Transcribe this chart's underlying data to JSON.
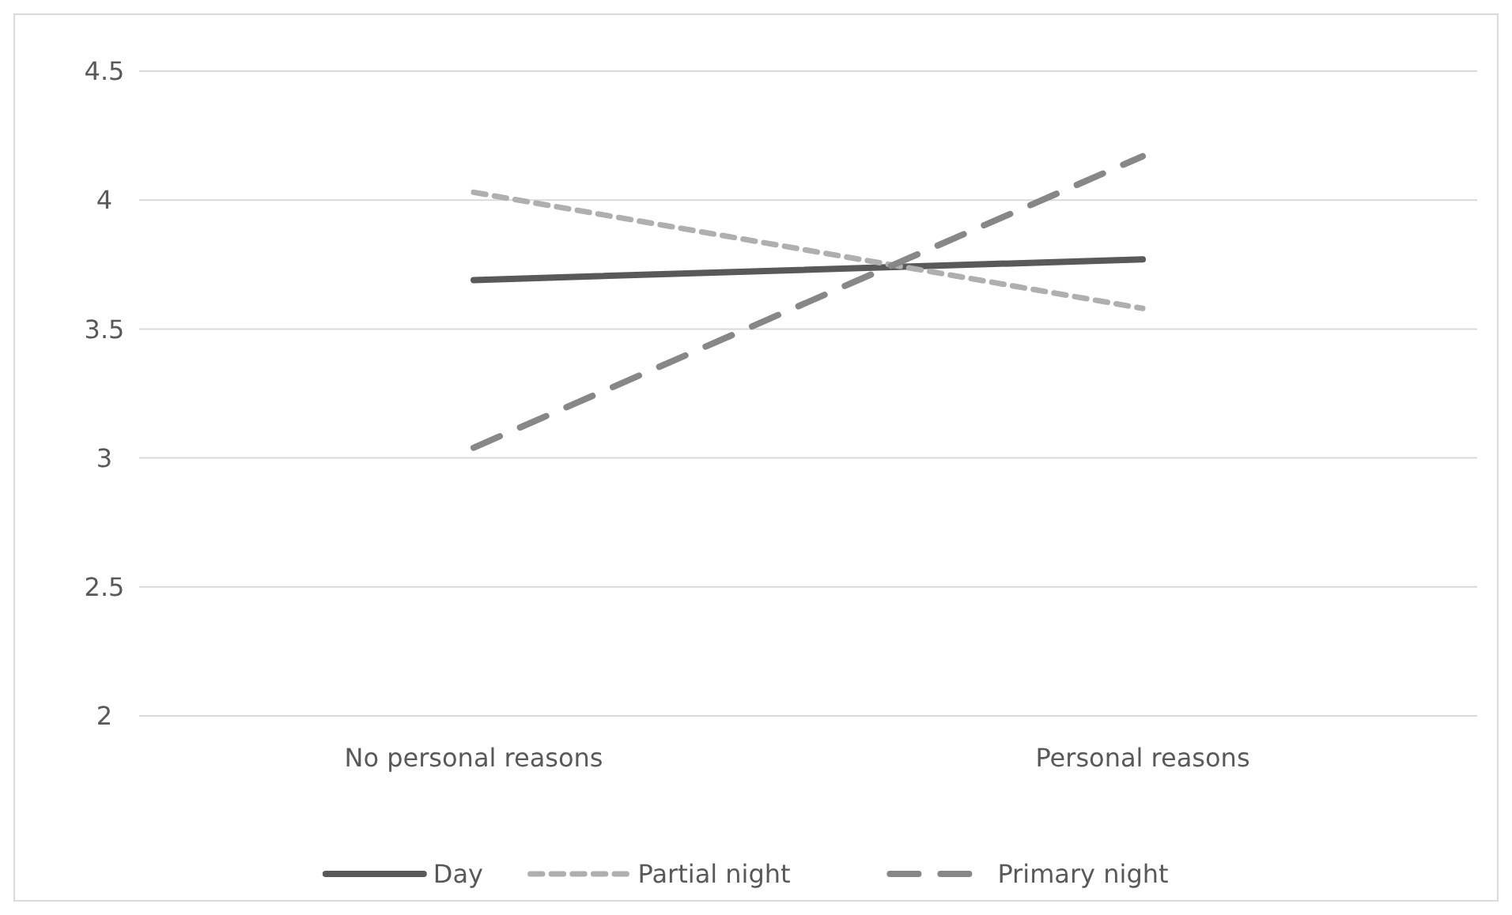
{
  "chart_data": {
    "type": "line",
    "categories": [
      "No personal reasons",
      "Personal reasons"
    ],
    "series": [
      {
        "name": "Day",
        "color": "#595959",
        "values": [
          3.69,
          3.77
        ],
        "line_style": "solid"
      },
      {
        "name": "Partial night",
        "color": "#afafaf",
        "values": [
          4.03,
          3.58
        ],
        "line_style": "dashed"
      },
      {
        "name": "Primary night",
        "color": "#878787",
        "values": [
          3.04,
          4.17
        ],
        "line_style": "dashed"
      }
    ],
    "ylim": [
      2,
      4.5
    ],
    "yticks": [
      2,
      2.5,
      3,
      3.5,
      4,
      4.5
    ],
    "grid": "y",
    "legend": "bottom"
  }
}
